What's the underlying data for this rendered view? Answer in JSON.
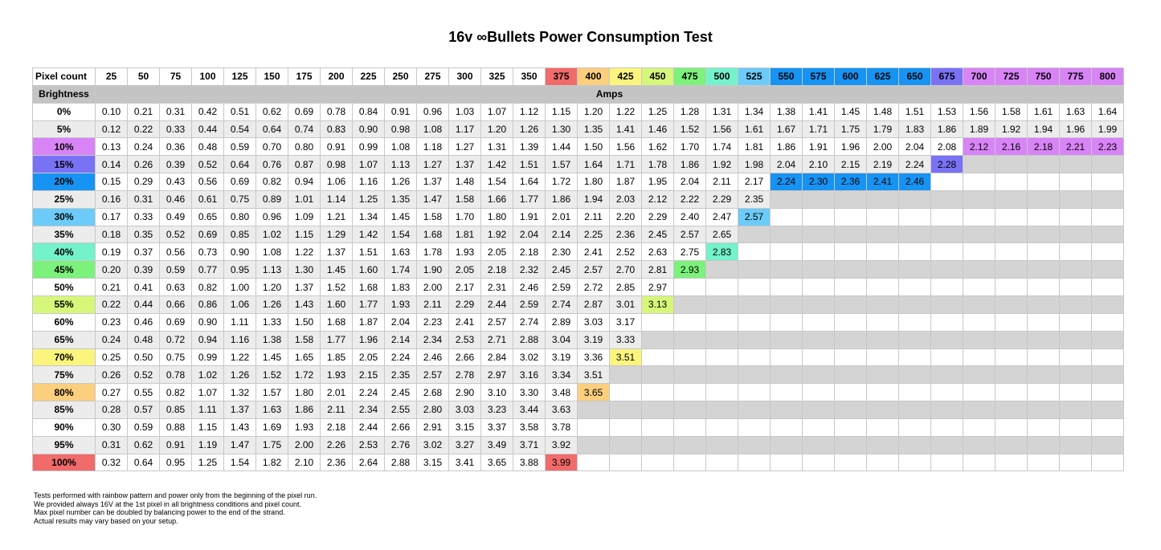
{
  "title": "16v ∞Bullets Power Consumption Test",
  "header": {
    "pixel_count_label": "Pixel count",
    "brightness_label": "Brightness",
    "amps_label": "Amps"
  },
  "pixel_counts": [
    "25",
    "50",
    "75",
    "100",
    "125",
    "150",
    "175",
    "200",
    "225",
    "250",
    "275",
    "300",
    "325",
    "350",
    "375",
    "400",
    "425",
    "450",
    "475",
    "500",
    "525",
    "550",
    "575",
    "600",
    "625",
    "650",
    "675",
    "700",
    "725",
    "750",
    "775",
    "800"
  ],
  "rows": [
    {
      "label": "0%",
      "values": [
        "0.10",
        "0.21",
        "0.31",
        "0.42",
        "0.51",
        "0.62",
        "0.69",
        "0.78",
        "0.84",
        "0.91",
        "0.96",
        "1.03",
        "1.07",
        "1.12",
        "1.15",
        "1.20",
        "1.22",
        "1.25",
        "1.28",
        "1.31",
        "1.34",
        "1.38",
        "1.41",
        "1.45",
        "1.48",
        "1.51",
        "1.53",
        "1.56",
        "1.58",
        "1.61",
        "1.63",
        "1.64"
      ]
    },
    {
      "label": "5%",
      "values": [
        "0.12",
        "0.22",
        "0.33",
        "0.44",
        "0.54",
        "0.64",
        "0.74",
        "0.83",
        "0.90",
        "0.98",
        "1.08",
        "1.17",
        "1.20",
        "1.26",
        "1.30",
        "1.35",
        "1.41",
        "1.46",
        "1.52",
        "1.56",
        "1.61",
        "1.67",
        "1.71",
        "1.75",
        "1.79",
        "1.83",
        "1.86",
        "1.89",
        "1.92",
        "1.94",
        "1.96",
        "1.99"
      ]
    },
    {
      "label": "10%",
      "values": [
        "0.13",
        "0.24",
        "0.36",
        "0.48",
        "0.59",
        "0.70",
        "0.80",
        "0.91",
        "0.99",
        "1.08",
        "1.18",
        "1.27",
        "1.31",
        "1.39",
        "1.44",
        "1.50",
        "1.56",
        "1.62",
        "1.70",
        "1.74",
        "1.81",
        "1.86",
        "1.91",
        "1.96",
        "2.00",
        "2.04",
        "2.08",
        "2.12",
        "2.16",
        "2.18",
        "2.21",
        "2.23"
      ]
    },
    {
      "label": "15%",
      "values": [
        "0.14",
        "0.26",
        "0.39",
        "0.52",
        "0.64",
        "0.76",
        "0.87",
        "0.98",
        "1.07",
        "1.13",
        "1.27",
        "1.37",
        "1.42",
        "1.51",
        "1.57",
        "1.64",
        "1.71",
        "1.78",
        "1.86",
        "1.92",
        "1.98",
        "2.04",
        "2.10",
        "2.15",
        "2.19",
        "2.24",
        "2.28"
      ]
    },
    {
      "label": "20%",
      "values": [
        "0.15",
        "0.29",
        "0.43",
        "0.56",
        "0.69",
        "0.82",
        "0.94",
        "1.06",
        "1.16",
        "1.26",
        "1.37",
        "1.48",
        "1.54",
        "1.64",
        "1.72",
        "1.80",
        "1.87",
        "1.95",
        "2.04",
        "2.11",
        "2.17",
        "2.24",
        "2.30",
        "2.36",
        "2.41",
        "2.46"
      ]
    },
    {
      "label": "25%",
      "values": [
        "0.16",
        "0.31",
        "0.46",
        "0.61",
        "0.75",
        "0.89",
        "1.01",
        "1.14",
        "1.25",
        "1.35",
        "1.47",
        "1.58",
        "1.66",
        "1.77",
        "1.86",
        "1.94",
        "2.03",
        "2.12",
        "2.22",
        "2.29",
        "2.35"
      ]
    },
    {
      "label": "30%",
      "values": [
        "0.17",
        "0.33",
        "0.49",
        "0.65",
        "0.80",
        "0.96",
        "1.09",
        "1.21",
        "1.34",
        "1.45",
        "1.58",
        "1.70",
        "1.80",
        "1.91",
        "2.01",
        "2.11",
        "2.20",
        "2.29",
        "2.40",
        "2.47",
        "2.57"
      ]
    },
    {
      "label": "35%",
      "values": [
        "0.18",
        "0.35",
        "0.52",
        "0.69",
        "0.85",
        "1.02",
        "1.15",
        "1.29",
        "1.42",
        "1.54",
        "1.68",
        "1.81",
        "1.92",
        "2.04",
        "2.14",
        "2.25",
        "2.36",
        "2.45",
        "2.57",
        "2.65"
      ]
    },
    {
      "label": "40%",
      "values": [
        "0.19",
        "0.37",
        "0.56",
        "0.73",
        "0.90",
        "1.08",
        "1.22",
        "1.37",
        "1.51",
        "1.63",
        "1.78",
        "1.93",
        "2.05",
        "2.18",
        "2.30",
        "2.41",
        "2.52",
        "2.63",
        "2.75",
        "2.83"
      ]
    },
    {
      "label": "45%",
      "values": [
        "0.20",
        "0.39",
        "0.59",
        "0.77",
        "0.95",
        "1.13",
        "1.30",
        "1.45",
        "1.60",
        "1.74",
        "1.90",
        "2.05",
        "2.18",
        "2.32",
        "2.45",
        "2.57",
        "2.70",
        "2.81",
        "2.93"
      ]
    },
    {
      "label": "50%",
      "values": [
        "0.21",
        "0.41",
        "0.63",
        "0.82",
        "1.00",
        "1.20",
        "1.37",
        "1.52",
        "1.68",
        "1.83",
        "2.00",
        "2.17",
        "2.31",
        "2.46",
        "2.59",
        "2.72",
        "2.85",
        "2.97"
      ]
    },
    {
      "label": "55%",
      "values": [
        "0.22",
        "0.44",
        "0.66",
        "0.86",
        "1.06",
        "1.26",
        "1.43",
        "1.60",
        "1.77",
        "1.93",
        "2.11",
        "2.29",
        "2.44",
        "2.59",
        "2.74",
        "2.87",
        "3.01",
        "3.13"
      ]
    },
    {
      "label": "60%",
      "values": [
        "0.23",
        "0.46",
        "0.69",
        "0.90",
        "1.11",
        "1.33",
        "1.50",
        "1.68",
        "1.87",
        "2.04",
        "2.23",
        "2.41",
        "2.57",
        "2.74",
        "2.89",
        "3.03",
        "3.17"
      ]
    },
    {
      "label": "65%",
      "values": [
        "0.24",
        "0.48",
        "0.72",
        "0.94",
        "1.16",
        "1.38",
        "1.58",
        "1.77",
        "1.96",
        "2.14",
        "2.34",
        "2.53",
        "2.71",
        "2.88",
        "3.04",
        "3.19",
        "3.33"
      ]
    },
    {
      "label": "70%",
      "values": [
        "0.25",
        "0.50",
        "0.75",
        "0.99",
        "1.22",
        "1.45",
        "1.65",
        "1.85",
        "2.05",
        "2.24",
        "2.46",
        "2.66",
        "2.84",
        "3.02",
        "3.19",
        "3.36",
        "3.51"
      ]
    },
    {
      "label": "75%",
      "values": [
        "0.26",
        "0.52",
        "0.78",
        "1.02",
        "1.26",
        "1.52",
        "1.72",
        "1.93",
        "2.15",
        "2.35",
        "2.57",
        "2.78",
        "2.97",
        "3.16",
        "3.34",
        "3.51"
      ]
    },
    {
      "label": "80%",
      "values": [
        "0.27",
        "0.55",
        "0.82",
        "1.07",
        "1.32",
        "1.57",
        "1.80",
        "2.01",
        "2.24",
        "2.45",
        "2.68",
        "2.90",
        "3.10",
        "3.30",
        "3.48",
        "3.65"
      ]
    },
    {
      "label": "85%",
      "values": [
        "0.28",
        "0.57",
        "0.85",
        "1.11",
        "1.37",
        "1.63",
        "1.86",
        "2.11",
        "2.34",
        "2.55",
        "2.80",
        "3.03",
        "3.23",
        "3.44",
        "3.63"
      ]
    },
    {
      "label": "90%",
      "values": [
        "0.30",
        "0.59",
        "0.88",
        "1.15",
        "1.43",
        "1.69",
        "1.93",
        "2.18",
        "2.44",
        "2.66",
        "2.91",
        "3.15",
        "3.37",
        "3.58",
        "3.78"
      ]
    },
    {
      "label": "95%",
      "values": [
        "0.31",
        "0.62",
        "0.91",
        "1.19",
        "1.47",
        "1.75",
        "2.00",
        "2.26",
        "2.53",
        "2.76",
        "3.02",
        "3.27",
        "3.49",
        "3.71",
        "3.92"
      ]
    },
    {
      "label": "100%",
      "values": [
        "0.32",
        "0.64",
        "0.95",
        "1.25",
        "1.54",
        "1.82",
        "2.10",
        "2.36",
        "2.64",
        "2.88",
        "3.15",
        "3.41",
        "3.65",
        "3.88",
        "3.99"
      ]
    }
  ],
  "colors": {
    "header_gray": "#c4c4c4",
    "row_gray": "#ececec",
    "empty_gray": "#d4d4d4",
    "col_375": "#f26b6b",
    "col_400": "#fbcf7d",
    "col_425": "#fbf57e",
    "col_450": "#d6f77a",
    "col_475": "#7cf17b",
    "col_500": "#74f2cc",
    "col_525": "#6ccbf8",
    "col_550_650": "#1693f3",
    "col_675": "#7a72f5",
    "col_700_800": "#d884f6"
  },
  "notes": [
    "Tests performed with rainbow pattern and power only from the beginning of the pixel run.",
    "We provided always 16V at the 1st pixel in all brightness conditions and pixel count.",
    "Max pixel number can be doubled by balancing power to the end of the strand.",
    "Actual results may vary based on your setup."
  ]
}
